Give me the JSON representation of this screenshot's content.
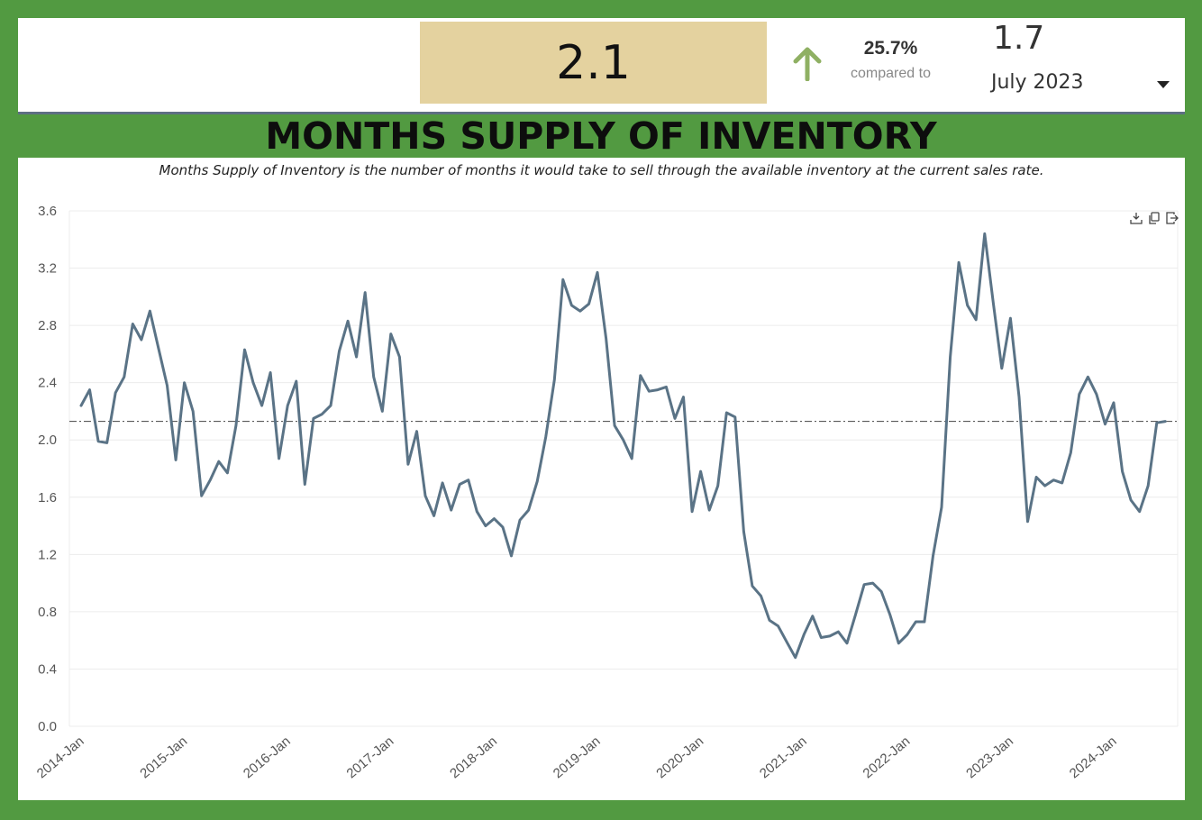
{
  "summary": {
    "current_value": "2.1",
    "change_pct": "25.7%",
    "compared_to_label": "compared to",
    "previous_value": "1.7",
    "previous_period": "July 2023",
    "arrow_icon": "up-arrow-icon",
    "arrow_color": "#8fb063",
    "value_box_color": "#e4d29f"
  },
  "heading": "MONTHS SUPPLY OF INVENTORY",
  "chart_data": {
    "type": "line",
    "subtitle": "Months Supply of Inventory is the number of months it would take to sell through the available inventory at the current sales rate.",
    "xlabel": "",
    "ylabel": "",
    "ylim": [
      0,
      3.6
    ],
    "y_ticks": [
      "0.0",
      "0.4",
      "0.8",
      "1.2",
      "1.6",
      "2.0",
      "2.4",
      "2.8",
      "3.2",
      "3.6"
    ],
    "x_ticks": [
      "2014-Jan",
      "2015-Jan",
      "2016-Jan",
      "2017-Jan",
      "2018-Jan",
      "2019-Jan",
      "2020-Jan",
      "2021-Jan",
      "2022-Jan",
      "2023-Jan",
      "2024-Jan"
    ],
    "grid": true,
    "line_color": "#5a7386",
    "reference_line": 2.13,
    "series": [
      {
        "x_start": "2014-Jan",
        "values": [
          2.24,
          2.35,
          1.99,
          1.98,
          2.33,
          2.44,
          2.81,
          2.7,
          2.9,
          2.64,
          2.38,
          1.86,
          2.4,
          2.2,
          1.61,
          1.72,
          1.85,
          1.77,
          2.1,
          2.63,
          2.4,
          2.24,
          2.47,
          1.87,
          2.24,
          2.41,
          1.69,
          2.15,
          2.18,
          2.24,
          2.62,
          2.83,
          2.58,
          3.03,
          2.44,
          2.2,
          2.74,
          2.58,
          1.83,
          2.06,
          1.61,
          1.47,
          1.7,
          1.51,
          1.69,
          1.72,
          1.5,
          1.4,
          1.45,
          1.39,
          1.19,
          1.44,
          1.51,
          1.71,
          2.02,
          2.42,
          3.12,
          2.94,
          2.9,
          2.95,
          3.17,
          2.71,
          2.1,
          2.0,
          1.87,
          2.45,
          2.34,
          2.35,
          2.37,
          2.15,
          2.3,
          1.5,
          1.78,
          1.51,
          1.68,
          2.19,
          2.16,
          1.36,
          0.98,
          0.91,
          0.74,
          0.7,
          0.59,
          0.48,
          0.64,
          0.77,
          0.62,
          0.63,
          0.66,
          0.58,
          0.78,
          0.99,
          1.0,
          0.94,
          0.78,
          0.58,
          0.64,
          0.73,
          0.73,
          1.19,
          1.53,
          2.58,
          3.24,
          2.94,
          2.84,
          3.44,
          2.96,
          2.5,
          2.85,
          2.3,
          1.43,
          1.74,
          1.68,
          1.72,
          1.7,
          1.91,
          2.32,
          2.44,
          2.32,
          2.11,
          2.26,
          1.78,
          1.58,
          1.5,
          1.68,
          2.12,
          2.13
        ]
      }
    ]
  }
}
